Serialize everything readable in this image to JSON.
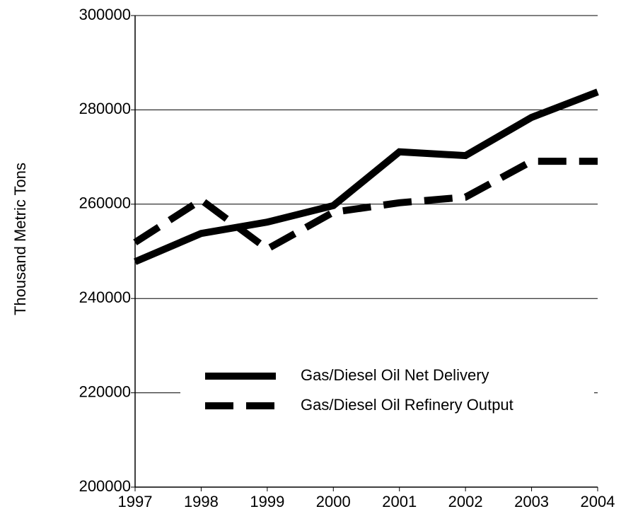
{
  "chart_data": {
    "type": "line",
    "y_label": "Thousand Metric Tons",
    "x": [
      1997,
      1998,
      1999,
      2000,
      2001,
      2002,
      2003,
      2004
    ],
    "xlim": [
      1997,
      2004
    ],
    "xticks": [
      1997,
      1998,
      1999,
      2000,
      2001,
      2002,
      2003,
      2004
    ],
    "ylim": [
      200000,
      300000
    ],
    "yticks": [
      200000,
      220000,
      240000,
      260000,
      280000,
      300000
    ],
    "grid": true,
    "legend": "lower right",
    "series": [
      {
        "name": "Gas/Diesel Oil Net Delivery",
        "color": "#000000",
        "dash": "solid",
        "values": [
          247800,
          253800,
          256200,
          259700,
          271100,
          270300,
          278400,
          283800
        ]
      },
      {
        "name": "Gas/Diesel Oil Refinery Output",
        "color": "#000000",
        "dash": "dashed",
        "values": [
          251900,
          260900,
          250500,
          258300,
          260300,
          261500,
          269100,
          269100
        ]
      }
    ]
  }
}
